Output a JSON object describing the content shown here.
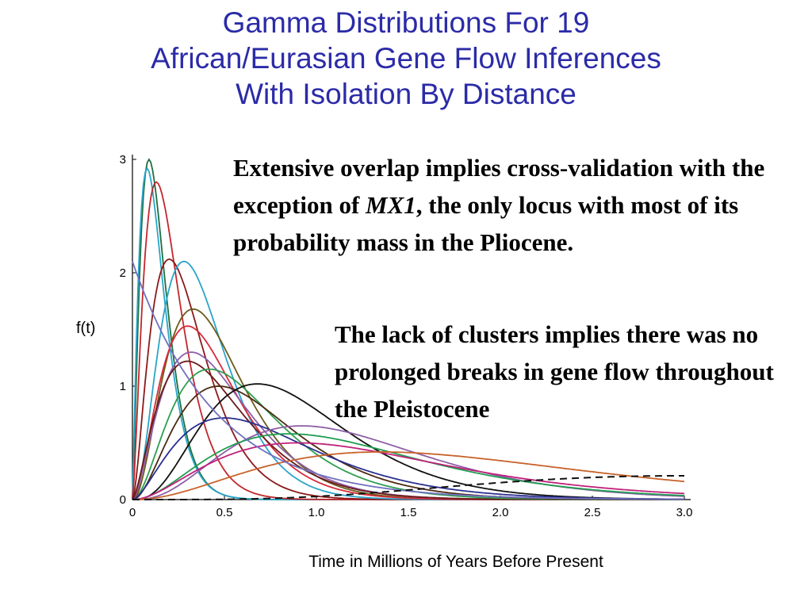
{
  "title_lines": [
    "Gamma Distributions For 19",
    "African/Eurasian Gene Flow Inferences",
    "With Isolation By Distance"
  ],
  "note1": {
    "part1": "Extensive overlap implies cross-validation with the exception of ",
    "italic": "MX1",
    "part2": ", the only locus with most of its probability mass in the Pliocene."
  },
  "note2": "The lack of clusters implies there was no prolonged breaks in gene flow throughout the Pleistocene",
  "chart_data": {
    "type": "line",
    "xlabel": "Time in Millions of Years Before Present",
    "ylabel": "f(t)",
    "xlim": [
      0,
      3.0
    ],
    "ylim": [
      0,
      3
    ],
    "x_ticks": [
      "0",
      "0.5",
      "1.0",
      "1.5",
      "2.0",
      "2.5",
      "3.0"
    ],
    "y_ticks": [
      "0",
      "1",
      "2",
      "3"
    ],
    "grid": false,
    "series": [
      {
        "mode": 0.09,
        "peak": 3.0,
        "spread": 0.13,
        "color": "#1f6f3f"
      },
      {
        "mode": 0.08,
        "peak": 2.92,
        "spread": 0.14,
        "color": "#2aa5c9"
      },
      {
        "mode": 0.13,
        "peak": 2.8,
        "spread": 0.18,
        "color": "#c1272d"
      },
      {
        "mode": 0.2,
        "peak": 2.12,
        "spread": 0.25,
        "color": "#8b1a1a"
      },
      {
        "mode": 0.28,
        "peak": 2.1,
        "spread": 0.26,
        "color": "#2aa5c9"
      },
      {
        "mode": 0.33,
        "peak": 1.68,
        "spread": 0.32,
        "color": "#6b5a1a"
      },
      {
        "mode": 0.3,
        "peak": 1.53,
        "spread": 0.33,
        "color": "#d62a3a"
      },
      {
        "mode": 0.32,
        "peak": 1.3,
        "spread": 0.4,
        "color": "#8e5fa8"
      },
      {
        "mode": 0.3,
        "peak": 1.22,
        "spread": 0.42,
        "color": "#6b1a1a"
      },
      {
        "mode": 0.42,
        "peak": 1.15,
        "spread": 0.45,
        "color": "#2e9e4f"
      },
      {
        "mode": 0.47,
        "peak": 1.0,
        "spread": 0.5,
        "color": "#4b2a10"
      },
      {
        "mode": 0.68,
        "peak": 1.02,
        "spread": 0.5,
        "color": "#111111"
      },
      {
        "mode": 0.5,
        "peak": 0.72,
        "spread": 0.65,
        "color": "#2a2f8f"
      },
      {
        "mode": 0.92,
        "peak": 0.65,
        "spread": 0.7,
        "color": "#8e5fa8"
      },
      {
        "mode": 0.85,
        "peak": 0.58,
        "spread": 0.85,
        "color": "#1f9e4f"
      },
      {
        "mode": 0.9,
        "peak": 0.5,
        "spread": 1.0,
        "color": "#c0207a"
      },
      {
        "mode": 1.35,
        "peak": 0.42,
        "spread": 1.3,
        "color": "#c8622a"
      },
      {
        "mode": 0.0,
        "peak": 2.1,
        "spread": 0.45,
        "color": "#7070c0"
      },
      {
        "mode": 3.0,
        "peak": 0.21,
        "spread": 1.4,
        "color": "#111111",
        "dashed": true
      }
    ]
  }
}
